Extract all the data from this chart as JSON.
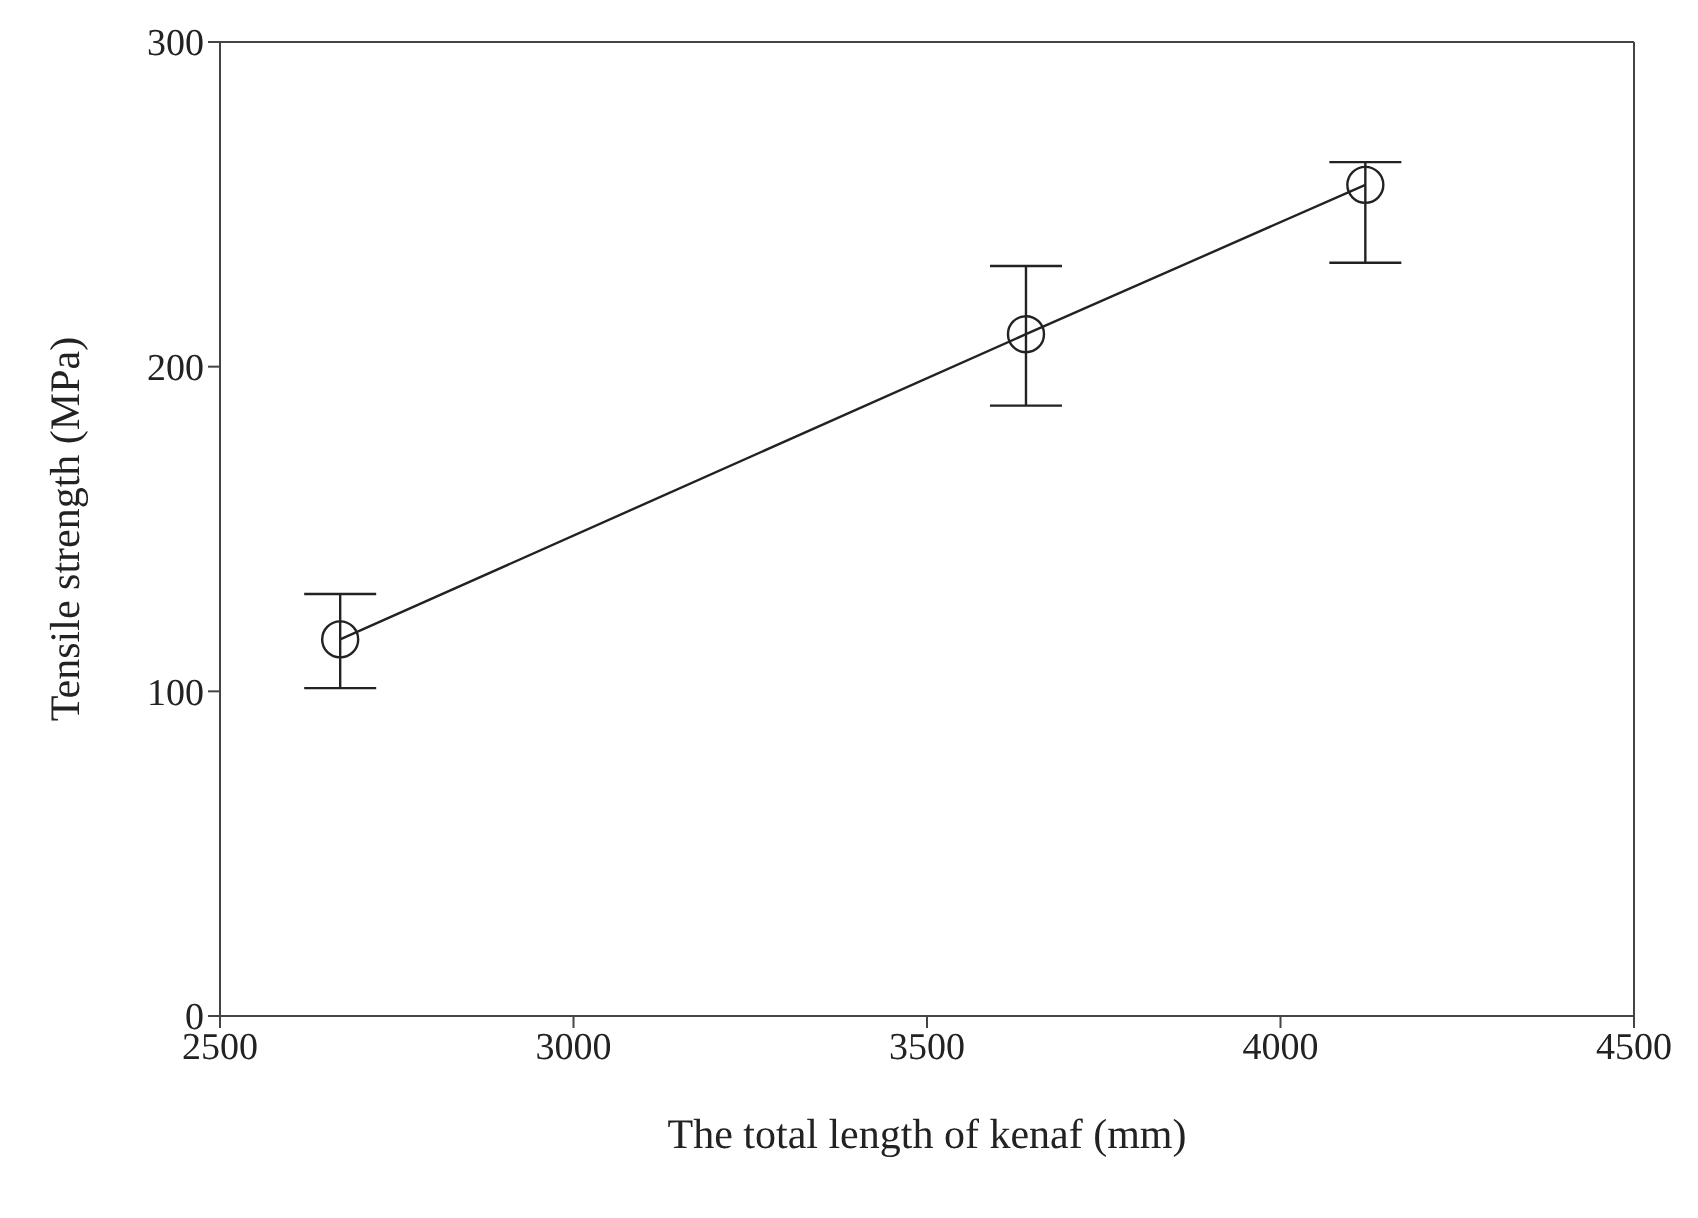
{
  "chart_data": {
    "type": "line",
    "xlabel": "The total length of kenaf (mm)",
    "ylabel": "Tensile strength (MPa)",
    "x": [
      2670,
      3640,
      4120
    ],
    "series": [
      {
        "color": "#222222",
        "values": [
          116,
          210,
          256
        ],
        "errors": [
          [
            101,
            130
          ],
          [
            188,
            231
          ],
          [
            232,
            263
          ]
        ]
      }
    ],
    "xlim": [
      2500,
      4500
    ],
    "xticks": [
      2500,
      3000,
      3500,
      4000,
      4500
    ],
    "ylim": [
      0,
      300
    ],
    "yticks": [
      0,
      100,
      200,
      300
    ],
    "marker": "circle",
    "line_style": "solid"
  }
}
